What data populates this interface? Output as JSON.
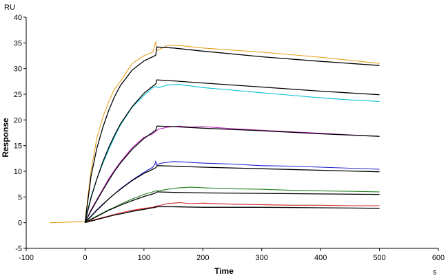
{
  "chart_data": {
    "type": "line",
    "title": "",
    "xlabel": "Time",
    "ylabel": "Response",
    "x_unit": "s",
    "y_unit": "RU",
    "xlim": [
      -100,
      600
    ],
    "ylim": [
      -5,
      40
    ],
    "x_ticks": [
      -100,
      0,
      100,
      200,
      300,
      400,
      500,
      600
    ],
    "y_ticks": [
      -5,
      0,
      5,
      10,
      15,
      20,
      25,
      30,
      35,
      40
    ],
    "grid": false,
    "legend": "none",
    "series": [
      {
        "color": "#e6a020",
        "x": [
          -60,
          0,
          1,
          10,
          20,
          30,
          40,
          50,
          60,
          80,
          100,
          115,
          120,
          122,
          140,
          160,
          200,
          250,
          300,
          350,
          400,
          450,
          500
        ],
        "y": [
          0,
          0.2,
          1.5,
          10,
          16.5,
          20.5,
          23.5,
          26,
          27.5,
          31,
          32.5,
          33.2,
          35.2,
          33.5,
          34.5,
          34.5,
          34.0,
          33.6,
          33.2,
          32.7,
          32.2,
          31.6,
          31.0
        ]
      },
      {
        "color": "#000000",
        "x": [
          0,
          1,
          10,
          20,
          30,
          40,
          50,
          60,
          80,
          100,
          115,
          120,
          122,
          150,
          200,
          300,
          400,
          500
        ],
        "y": [
          0,
          1,
          9,
          14.5,
          18.5,
          21.8,
          24.5,
          26.7,
          29.7,
          31.5,
          32.3,
          32.6,
          34.2,
          34.0,
          33.4,
          32.3,
          31.4,
          30.6
        ]
      },
      {
        "color": "#00c0d8",
        "x": [
          0,
          1,
          10,
          20,
          30,
          40,
          50,
          60,
          80,
          100,
          115,
          120,
          125,
          140,
          160,
          200,
          250,
          300,
          350,
          400,
          450,
          500
        ],
        "y": [
          0,
          0.8,
          5,
          8.5,
          11.5,
          14.2,
          16.7,
          19,
          22.5,
          24.8,
          26.3,
          26.5,
          26.3,
          26.8,
          26.9,
          26.3,
          25.8,
          25.3,
          24.8,
          24.3,
          23.9,
          23.6
        ]
      },
      {
        "color": "#000000",
        "x": [
          0,
          1,
          10,
          20,
          30,
          40,
          50,
          60,
          80,
          100,
          115,
          120,
          122,
          150,
          200,
          300,
          400,
          500
        ],
        "y": [
          0,
          0.6,
          4.8,
          8.5,
          11.8,
          14.6,
          17,
          19.2,
          22.6,
          25.2,
          26.6,
          27.0,
          27.8,
          27.6,
          27.2,
          26.4,
          25.6,
          24.9
        ]
      },
      {
        "color": "#c020c0",
        "x": [
          0,
          1,
          10,
          20,
          30,
          40,
          50,
          60,
          80,
          100,
          115,
          120,
          125,
          140,
          160,
          180,
          200,
          250,
          300,
          350,
          400,
          450,
          500
        ],
        "y": [
          0,
          0.3,
          2.5,
          4.5,
          6.5,
          8.5,
          10.2,
          11.8,
          14.6,
          16.6,
          17.3,
          17.8,
          18.2,
          18.6,
          18.8,
          18.6,
          18.7,
          18.3,
          18.0,
          17.7,
          17.4,
          17.1,
          16.8
        ]
      },
      {
        "color": "#000000",
        "x": [
          0,
          1,
          10,
          20,
          30,
          40,
          50,
          60,
          80,
          100,
          115,
          120,
          122,
          150,
          200,
          300,
          400,
          500
        ],
        "y": [
          0,
          0.3,
          2.3,
          4.3,
          6.3,
          8.2,
          10.0,
          11.6,
          14.3,
          16.4,
          17.6,
          18.0,
          18.8,
          18.7,
          18.4,
          17.9,
          17.3,
          16.8
        ]
      },
      {
        "color": "#2020d0",
        "x": [
          0,
          1,
          10,
          20,
          30,
          40,
          50,
          60,
          80,
          100,
          115,
          119,
          120,
          121,
          130,
          150,
          170,
          200,
          250,
          300,
          350,
          400,
          450,
          500
        ],
        "y": [
          0,
          0.2,
          1.3,
          2.5,
          3.6,
          4.6,
          5.6,
          6.6,
          8.3,
          9.8,
          10.8,
          11.5,
          12.0,
          11.3,
          11.6,
          11.9,
          11.8,
          11.6,
          11.4,
          11.1,
          11.0,
          10.8,
          10.6,
          10.4
        ]
      },
      {
        "color": "#000000",
        "x": [
          0,
          1,
          10,
          20,
          30,
          40,
          50,
          60,
          80,
          100,
          115,
          120,
          122,
          150,
          200,
          300,
          400,
          500
        ],
        "y": [
          0,
          0.2,
          1.2,
          2.4,
          3.5,
          4.6,
          5.6,
          6.5,
          8.2,
          9.6,
          10.4,
          10.7,
          11.1,
          11.0,
          10.8,
          10.5,
          10.2,
          9.9
        ]
      },
      {
        "color": "#208020",
        "x": [
          0,
          1,
          10,
          20,
          30,
          40,
          50,
          60,
          80,
          100,
          115,
          120,
          125,
          140,
          160,
          180,
          200,
          250,
          300,
          350,
          400,
          450,
          500
        ],
        "y": [
          0,
          0.1,
          0.7,
          1.3,
          1.9,
          2.5,
          3.0,
          3.6,
          4.6,
          5.5,
          6.0,
          6.2,
          6.2,
          6.5,
          6.8,
          6.9,
          6.8,
          6.6,
          6.5,
          6.3,
          6.2,
          6.1,
          6.0
        ]
      },
      {
        "color": "#000000",
        "x": [
          0,
          1,
          10,
          20,
          30,
          40,
          50,
          60,
          80,
          100,
          115,
          120,
          122,
          150,
          200,
          300,
          400,
          500
        ],
        "y": [
          0,
          0.1,
          0.6,
          1.2,
          1.8,
          2.4,
          2.9,
          3.4,
          4.3,
          5.1,
          5.6,
          5.8,
          6.0,
          5.9,
          5.8,
          5.7,
          5.6,
          5.5
        ]
      },
      {
        "color": "#d02020",
        "x": [
          0,
          1,
          10,
          20,
          30,
          40,
          50,
          60,
          80,
          100,
          115,
          120,
          125,
          140,
          160,
          180,
          200,
          250,
          300,
          350,
          400,
          450,
          500
        ],
        "y": [
          0,
          0.05,
          0.4,
          0.7,
          1.0,
          1.3,
          1.6,
          1.9,
          2.4,
          2.8,
          3.0,
          3.2,
          3.3,
          3.7,
          3.9,
          3.7,
          3.8,
          3.6,
          3.5,
          3.4,
          3.4,
          3.3,
          3.3
        ]
      },
      {
        "color": "#000000",
        "x": [
          0,
          1,
          10,
          20,
          30,
          40,
          50,
          60,
          80,
          100,
          115,
          120,
          122,
          150,
          200,
          300,
          400,
          500
        ],
        "y": [
          0,
          0.05,
          0.3,
          0.6,
          0.9,
          1.2,
          1.5,
          1.7,
          2.2,
          2.6,
          2.9,
          3.0,
          3.1,
          3.1,
          3.0,
          3.0,
          2.9,
          2.8
        ]
      }
    ]
  }
}
